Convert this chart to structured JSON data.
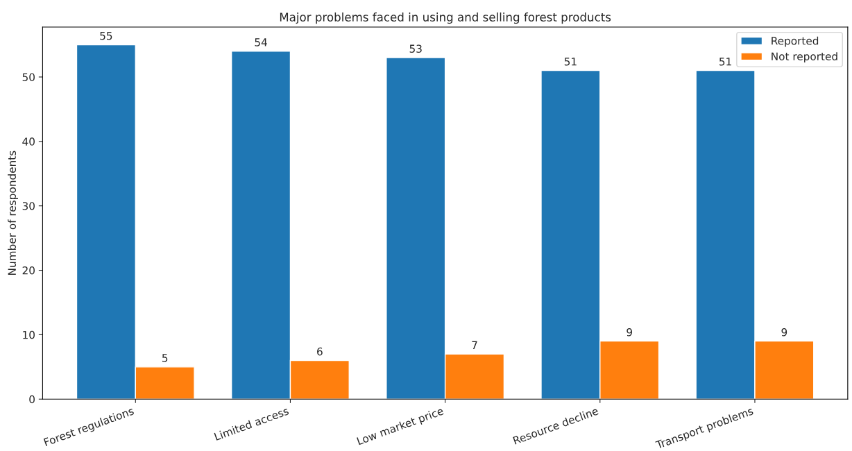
{
  "chart_data": {
    "type": "bar",
    "title": "Major problems faced in using and selling forest products",
    "ylabel": "Number of respondents",
    "categories": [
      "Forest regulations",
      "Limited access",
      "Low market price",
      "Resource decline",
      "Transport problems"
    ],
    "series": [
      {
        "name": "Reported",
        "color": "#1f77b4",
        "values": [
          55,
          54,
          53,
          51,
          51
        ]
      },
      {
        "name": "Not reported",
        "color": "#ff7f0e",
        "values": [
          5,
          6,
          7,
          9,
          9
        ]
      }
    ],
    "ylim": [
      0,
      57.75
    ],
    "yticks": [
      0,
      10,
      20,
      30,
      40,
      50
    ],
    "data_labels": true,
    "legend": "top right",
    "grid": false
  }
}
